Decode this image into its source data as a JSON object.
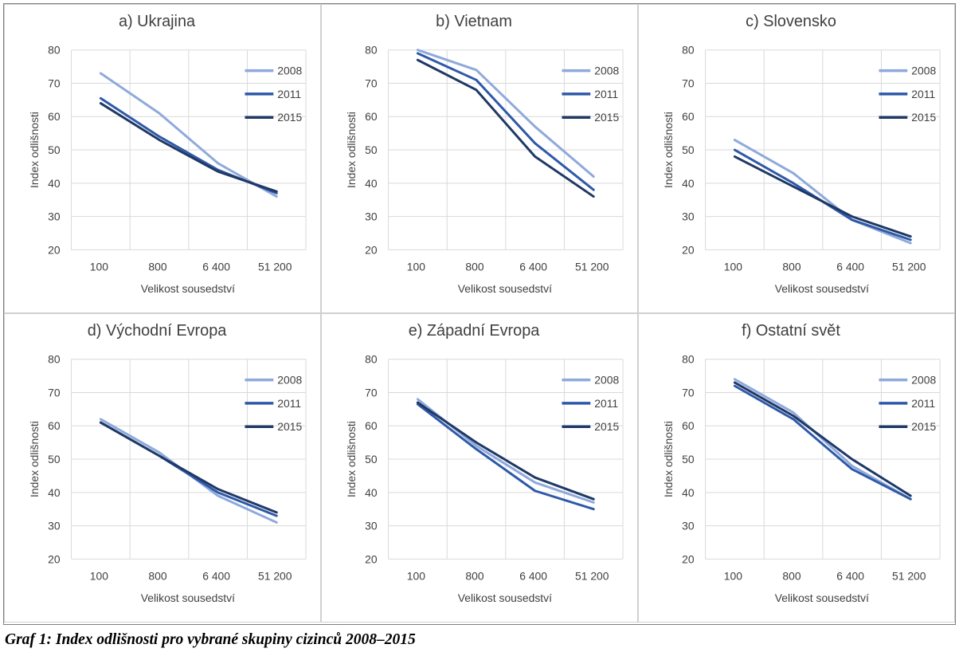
{
  "caption": "Graf 1: Index odlišnosti pro vybrané skupiny cizinců 2008–2015",
  "colors": {
    "2008": "#8ea9db",
    "2011": "#2e59a8",
    "2015": "#1f3864"
  },
  "chart_data": [
    {
      "type": "line",
      "title": "a) Ukrajina",
      "xlabel": "Velikost sousedství",
      "ylabel": "Index odlišnosti",
      "categories": [
        "100",
        "800",
        "6 400",
        "51 200"
      ],
      "ylim": [
        20,
        80
      ],
      "yticks": [
        20,
        30,
        40,
        50,
        60,
        70,
        80
      ],
      "grid": true,
      "legend": "top-right",
      "series": [
        {
          "name": "2008",
          "values": [
            73,
            61,
            46,
            36
          ]
        },
        {
          "name": "2011",
          "values": [
            65.5,
            54,
            44,
            37
          ]
        },
        {
          "name": "2015",
          "values": [
            64,
            53,
            43.5,
            37.5
          ]
        }
      ]
    },
    {
      "type": "line",
      "title": "b) Vietnam",
      "xlabel": "Velikost sousedství",
      "ylabel": "Index odlišnosti",
      "categories": [
        "100",
        "800",
        "6 400",
        "51 200"
      ],
      "ylim": [
        20,
        80
      ],
      "yticks": [
        20,
        30,
        40,
        50,
        60,
        70,
        80
      ],
      "grid": true,
      "legend": "top-right",
      "series": [
        {
          "name": "2008",
          "values": [
            80,
            74,
            57,
            42
          ]
        },
        {
          "name": "2011",
          "values": [
            79,
            71,
            52,
            38
          ]
        },
        {
          "name": "2015",
          "values": [
            77,
            68,
            48,
            36
          ]
        }
      ]
    },
    {
      "type": "line",
      "title": "c) Slovensko",
      "xlabel": "Velikost sousedství",
      "ylabel": "Index odlišnosti",
      "categories": [
        "100",
        "800",
        "6 400",
        "51 200"
      ],
      "ylim": [
        20,
        80
      ],
      "yticks": [
        20,
        30,
        40,
        50,
        60,
        70,
        80
      ],
      "grid": true,
      "legend": "top-right",
      "series": [
        {
          "name": "2008",
          "values": [
            53,
            43,
            29,
            22
          ]
        },
        {
          "name": "2011",
          "values": [
            50,
            40,
            29,
            23
          ]
        },
        {
          "name": "2015",
          "values": [
            48,
            39,
            30,
            24
          ]
        }
      ]
    },
    {
      "type": "line",
      "title": "d) Východní Evropa",
      "xlabel": "Velikost sousedství",
      "ylabel": "Index odlišnosti",
      "categories": [
        "100",
        "800",
        "6 400",
        "51 200"
      ],
      "ylim": [
        20,
        80
      ],
      "yticks": [
        20,
        30,
        40,
        50,
        60,
        70,
        80
      ],
      "grid": true,
      "legend": "top-right",
      "series": [
        {
          "name": "2008",
          "values": [
            62,
            52,
            39,
            31
          ]
        },
        {
          "name": "2011",
          "values": [
            61,
            51,
            40,
            33
          ]
        },
        {
          "name": "2015",
          "values": [
            61,
            51,
            41,
            34
          ]
        }
      ]
    },
    {
      "type": "line",
      "title": "e) Západní Evropa",
      "xlabel": "Velikost sousedství",
      "ylabel": "Index odlišnosti",
      "categories": [
        "100",
        "800",
        "6 400",
        "51 200"
      ],
      "ylim": [
        20,
        80
      ],
      "yticks": [
        20,
        30,
        40,
        50,
        60,
        70,
        80
      ],
      "grid": true,
      "legend": "top-right",
      "series": [
        {
          "name": "2008",
          "values": [
            68,
            54,
            43,
            37
          ]
        },
        {
          "name": "2011",
          "values": [
            66.5,
            53,
            40.5,
            35
          ]
        },
        {
          "name": "2015",
          "values": [
            67,
            55,
            44.5,
            38
          ]
        }
      ]
    },
    {
      "type": "line",
      "title": "f) Ostatní svět",
      "xlabel": "Velikost sousedství",
      "ylabel": "Index odlišnosti",
      "categories": [
        "100",
        "800",
        "6 400",
        "51 200"
      ],
      "ylim": [
        20,
        80
      ],
      "yticks": [
        20,
        30,
        40,
        50,
        60,
        70,
        80
      ],
      "grid": true,
      "legend": "top-right",
      "series": [
        {
          "name": "2008",
          "values": [
            74,
            64,
            48,
            38
          ]
        },
        {
          "name": "2011",
          "values": [
            72,
            62,
            47,
            38
          ]
        },
        {
          "name": "2015",
          "values": [
            73,
            63,
            50,
            39
          ]
        }
      ]
    }
  ]
}
